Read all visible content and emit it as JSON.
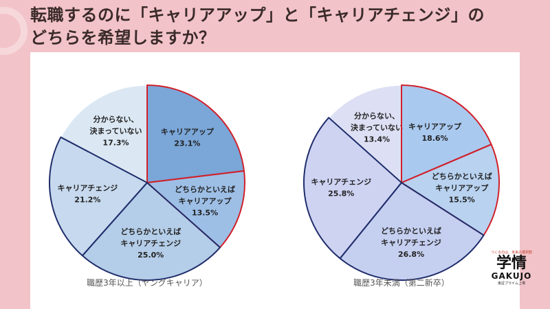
{
  "title_line1": "転職するのに「キャリアアップ」と「キャリアチェンジ」の",
  "title_line2": "どちらを希望しますか？",
  "logo": {
    "tagline": "つくるのは、未来の選択肢",
    "kanji": "学情",
    "roman": "GAKUJO",
    "sub": "東証プライム上場"
  },
  "chart_data": [
    {
      "type": "pie",
      "title": "職歴3年以上（ヤングキャリア）",
      "slices": [
        {
          "label": [
            "キャリアアップ"
          ],
          "value": 23.1,
          "value_text": "23.1%",
          "color": "#7aa6d8",
          "border": "#d0202a"
        },
        {
          "label": [
            "どちらかといえば",
            "キャリアアップ"
          ],
          "value": 13.5,
          "value_text": "13.5%",
          "color": "#9dbfe6",
          "border": "#d0202a"
        },
        {
          "label": [
            "どちらかといえば",
            "キャリアチェンジ"
          ],
          "value": 25.0,
          "value_text": "25.0%",
          "color": "#b4cde8",
          "border": "#1f2d6b"
        },
        {
          "label": [
            "キャリアチェンジ"
          ],
          "value": 21.2,
          "value_text": "21.2%",
          "color": "#c6d9ee",
          "border": "#1f2d6b"
        },
        {
          "label": [
            "分からない、",
            "決まっていない"
          ],
          "value": 17.3,
          "value_text": "17.3%",
          "color": "#dbe8f4",
          "border": "#ffffff"
        }
      ]
    },
    {
      "type": "pie",
      "title": "職歴3年未満（第二新卒）",
      "slices": [
        {
          "label": [
            "キャリアアップ"
          ],
          "value": 18.6,
          "value_text": "18.6%",
          "color": "#a9c9ef",
          "border": "#d0202a"
        },
        {
          "label": [
            "どちらかといえば",
            "キャリアアップ"
          ],
          "value": 15.5,
          "value_text": "15.5%",
          "color": "#b8d2f0",
          "border": "#d0202a"
        },
        {
          "label": [
            "どちらかといえば",
            "キャリアチェンジ"
          ],
          "value": 26.8,
          "value_text": "26.8%",
          "color": "#c5cff0",
          "border": "#1f2d6b"
        },
        {
          "label": [
            "キャリアチェンジ"
          ],
          "value": 25.8,
          "value_text": "25.8%",
          "color": "#ced3f2",
          "border": "#1f2d6b"
        },
        {
          "label": [
            "分からない、",
            "決まっていない"
          ],
          "value": 13.4,
          "value_text": "13.4%",
          "color": "#dde0f4",
          "border": "#ffffff"
        }
      ]
    }
  ]
}
